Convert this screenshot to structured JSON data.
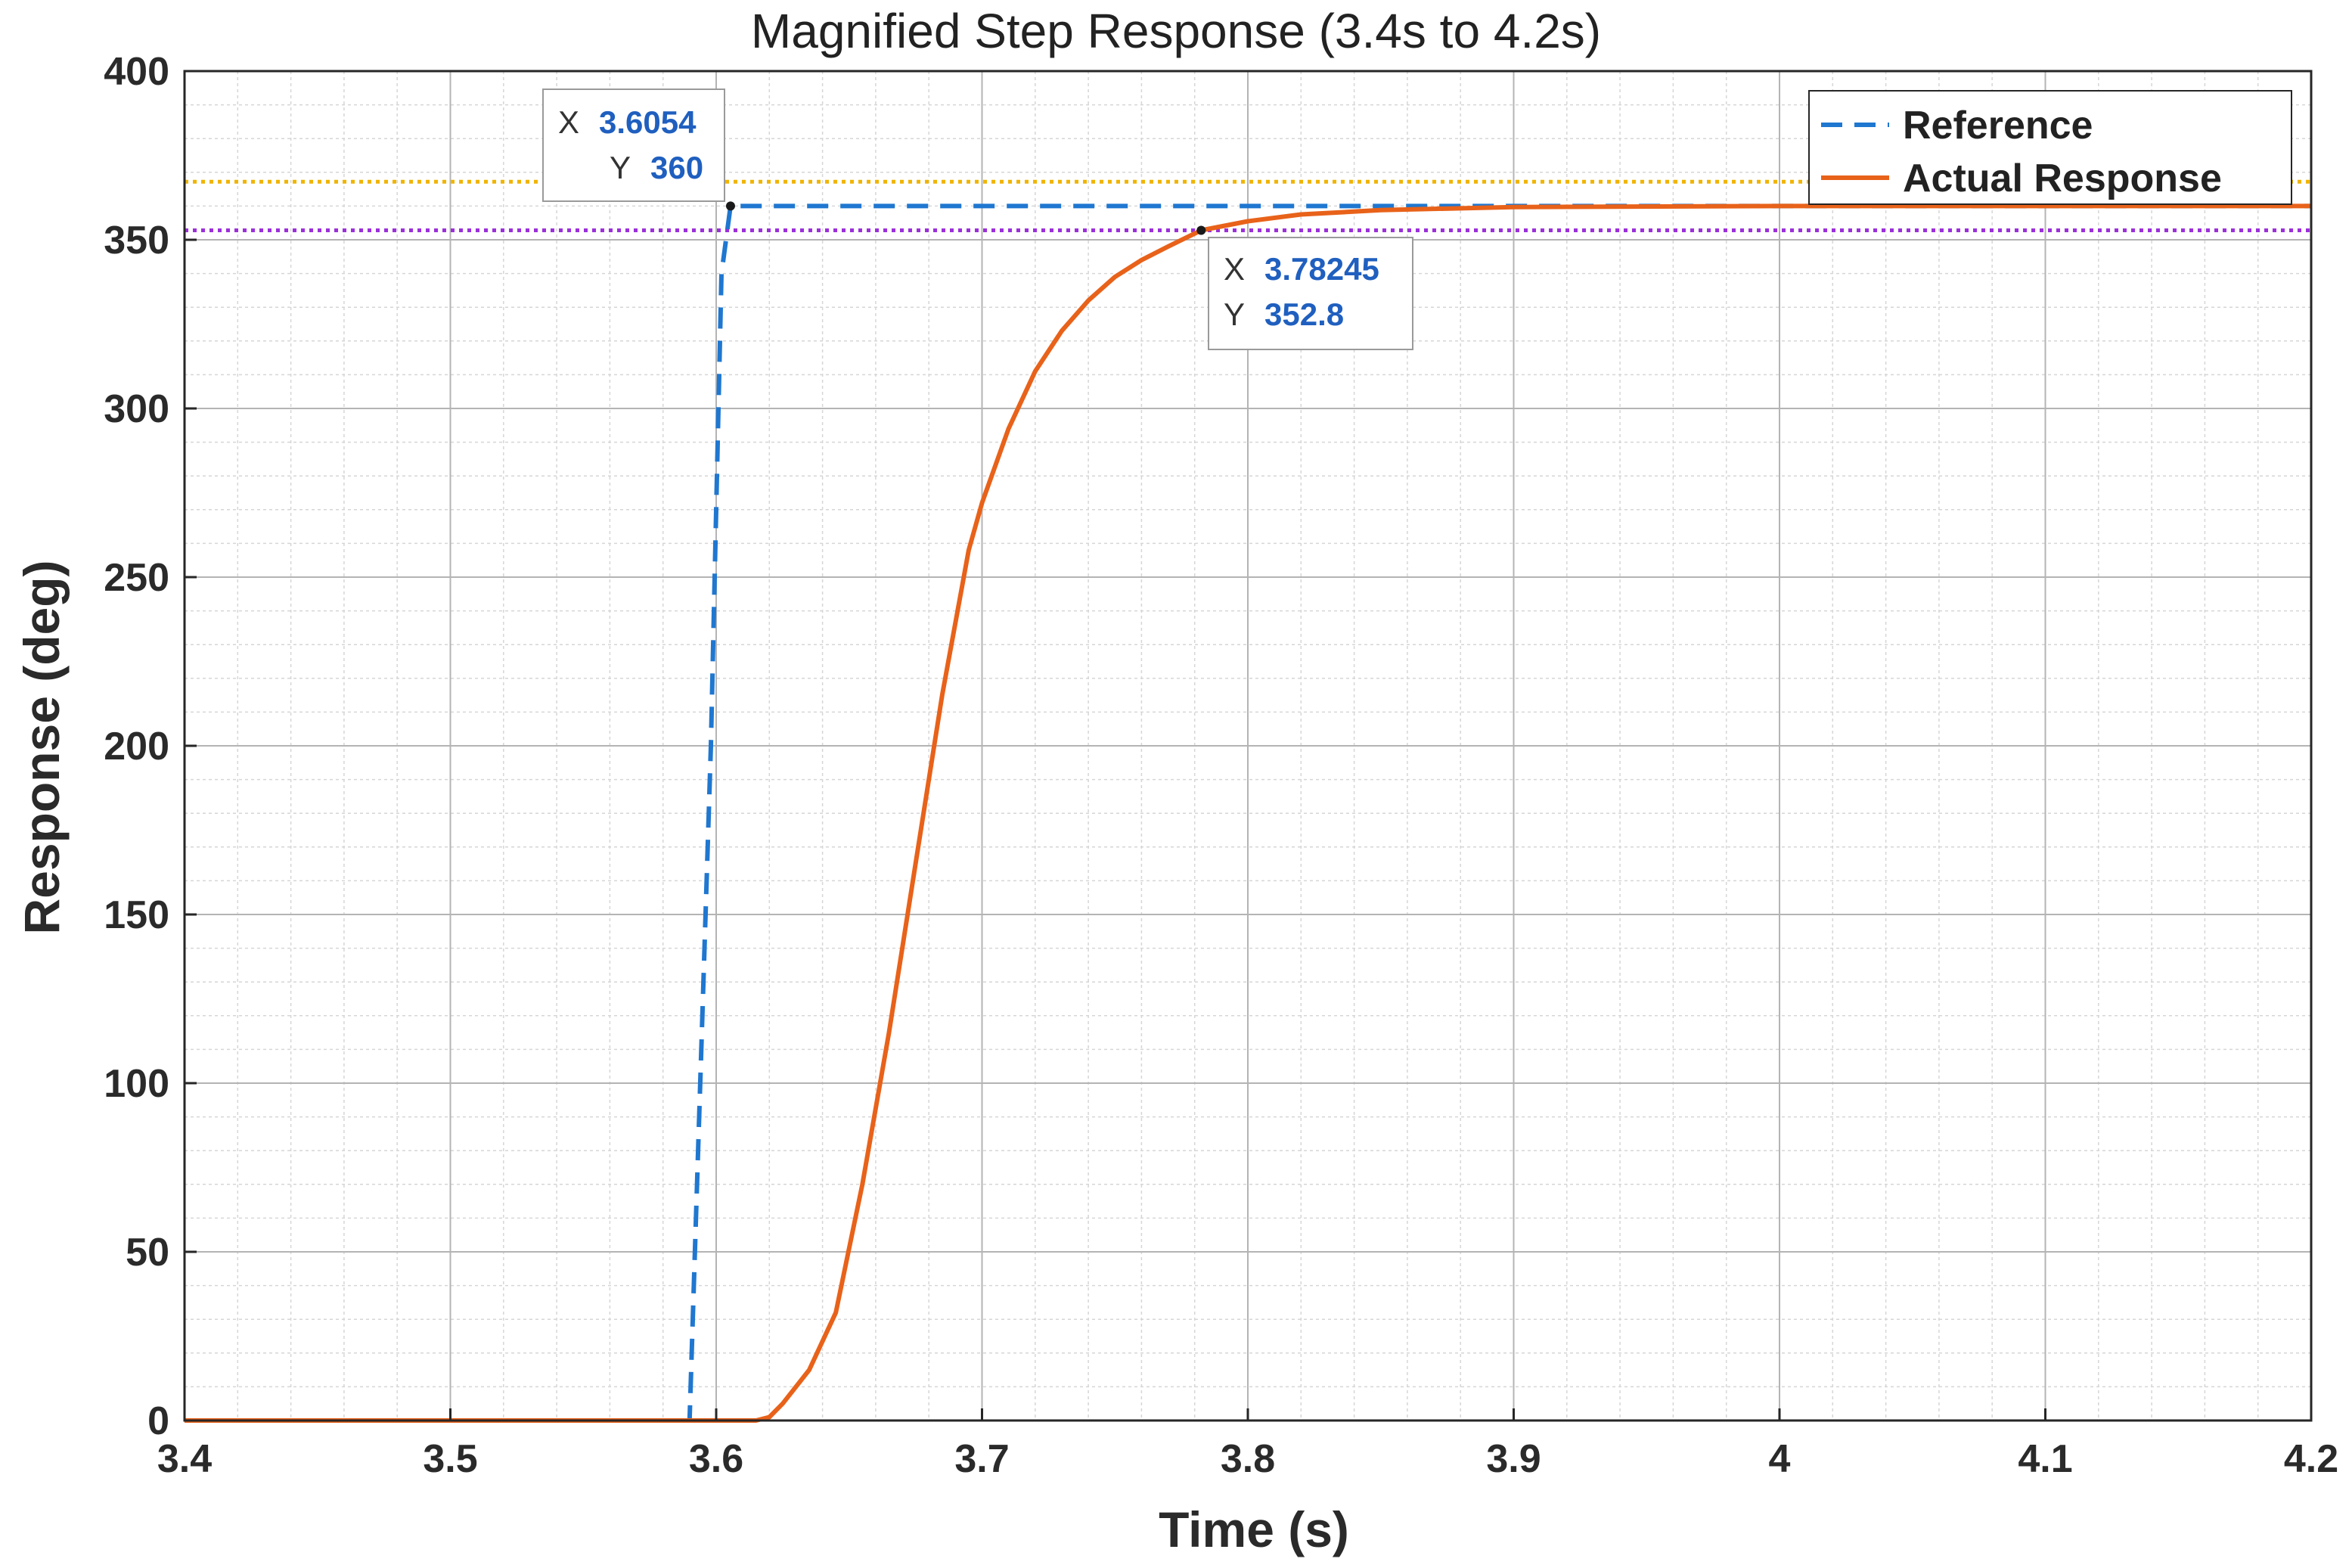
{
  "chart_data": {
    "type": "line",
    "title": "Magnified Step Response (3.4s to 4.2s)",
    "xlabel": "Time (s)",
    "ylabel": "Response (deg)",
    "xlim": [
      3.4,
      4.2
    ],
    "ylim": [
      0,
      400
    ],
    "grid": true,
    "minor_grid": true,
    "x_ticks": [
      3.4,
      3.5,
      3.6,
      3.7,
      3.8,
      3.9,
      4.0,
      4.1,
      4.2
    ],
    "x_tick_labels": [
      "3.4",
      "3.5",
      "3.6",
      "3.7",
      "3.8",
      "3.9",
      "4",
      "4.1",
      "4.2"
    ],
    "y_ticks": [
      0,
      50,
      100,
      150,
      200,
      250,
      300,
      350,
      400
    ],
    "y_tick_labels": [
      "0",
      "50",
      "100",
      "150",
      "200",
      "250",
      "300",
      "350",
      "400"
    ],
    "legend_position": "top-right",
    "series": [
      {
        "name": "Reference",
        "style": "dashed",
        "color": "#1f77d0",
        "x": [
          3.4,
          3.59,
          3.598,
          3.602,
          3.6054,
          4.2
        ],
        "y": [
          0,
          0,
          200,
          340,
          360,
          360
        ]
      },
      {
        "name": "Actual Response",
        "style": "solid",
        "color": "#e8621a",
        "x": [
          3.4,
          3.615,
          3.62,
          3.625,
          3.635,
          3.645,
          3.655,
          3.665,
          3.675,
          3.685,
          3.695,
          3.7,
          3.71,
          3.72,
          3.73,
          3.74,
          3.75,
          3.76,
          3.77,
          3.78245,
          3.8,
          3.82,
          3.85,
          3.9,
          4.0,
          4.2
        ],
        "y": [
          0,
          0,
          1,
          5,
          15,
          32,
          70,
          115,
          165,
          215,
          258,
          272,
          294,
          311,
          323,
          332,
          339,
          344,
          348,
          352.8,
          355.5,
          357.5,
          358.8,
          359.7,
          360,
          360
        ]
      }
    ],
    "reference_lines": [
      {
        "name": "upper-band",
        "y": 367.2,
        "color": "#f0b400",
        "style": "dotted"
      },
      {
        "name": "lower-band",
        "y": 352.8,
        "color": "#9b30d9",
        "style": "dotted"
      }
    ],
    "datatips": [
      {
        "x_label": "X",
        "x_value": "3.6054",
        "y_label": "Y",
        "y_value": "360",
        "x": 3.6054,
        "y": 360
      },
      {
        "x_label": "X",
        "x_value": "3.78245",
        "y_label": "Y",
        "y_value": "352.8",
        "x": 3.78245,
        "y": 352.8
      }
    ]
  }
}
